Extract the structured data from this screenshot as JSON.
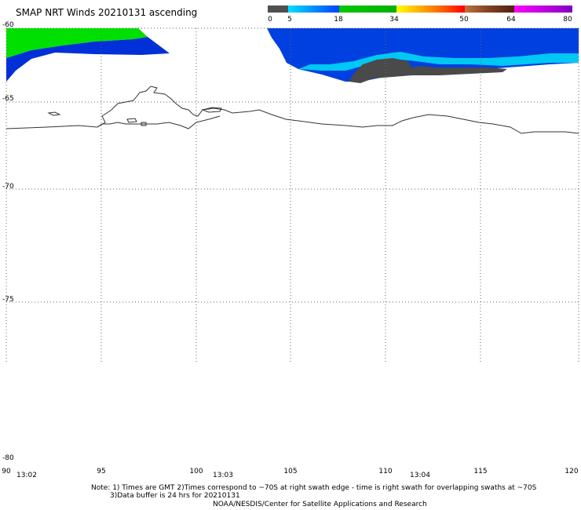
{
  "title": "SMAP NRT Winds 20210131 ascending",
  "colorbar": {
    "segments": [
      {
        "from": 0,
        "to": 5,
        "color": "#4d4d4d"
      },
      {
        "from": 5,
        "to": 18,
        "color": "#00b4ff"
      },
      {
        "from": 18,
        "to": 34,
        "color": "#00c000"
      },
      {
        "from": 34,
        "to": 50,
        "color": "#ff9000"
      },
      {
        "from": 50,
        "to": 64,
        "color": "#a0522d"
      },
      {
        "from": 64,
        "to": 80,
        "color": "#c000c0"
      }
    ],
    "labels": [
      "0",
      "5",
      "18",
      "34",
      "50",
      "64",
      "80"
    ]
  },
  "map": {
    "lat_range": [
      -80,
      -60
    ],
    "lon_range": [
      90,
      120
    ],
    "lat_labels": [
      "-60",
      "-65",
      "-70",
      "-75",
      "-80"
    ],
    "lon_labels": [
      "90",
      "95",
      "100",
      "105",
      "110",
      "115",
      "120"
    ],
    "time_labels": [
      "13:02",
      "13:03",
      "13:04"
    ]
  },
  "note_line1": "Note: 1) Times are GMT 2)Times correspond to ~70S at right swath edge - time is right swath for overlapping swaths at ~70S",
  "note_line2": "3)Data buffer is 24 hrs for 20210131",
  "credit": "NOAA/NESDIS/Center for Satellite Applications and Research",
  "colors": {
    "grid": "#666666",
    "coast": "#333333",
    "green_swath": "#00e000",
    "blue_swath": "#0033dd",
    "cyan_swath": "#00ccff",
    "gray_swath": "#4a4a4a"
  }
}
